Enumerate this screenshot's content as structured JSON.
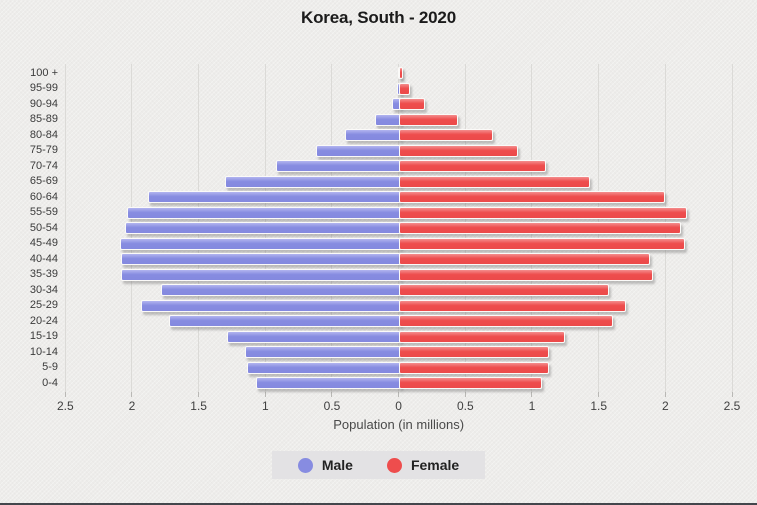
{
  "page": {
    "background_color": "#edecea",
    "bottom_border_color": "#43464c"
  },
  "chart_data": {
    "type": "bar",
    "variant": "population-pyramid",
    "title": "Korea, South - 2020",
    "xlabel": "Population (in millions)",
    "grid": true,
    "x_tick_labels": [
      "2.5",
      "2",
      "1.5",
      "1",
      "0.5",
      "0",
      "0.5",
      "1",
      "1.5",
      "2",
      "2.5"
    ],
    "x_axis_abs_range": [
      0,
      2.5
    ],
    "age_groups": [
      "100 +",
      "95-99",
      "90-94",
      "85-89",
      "80-84",
      "75-79",
      "70-74",
      "65-69",
      "60-64",
      "55-59",
      "50-54",
      "45-49",
      "40-44",
      "35-39",
      "30-34",
      "25-29",
      "20-24",
      "15-19",
      "10-14",
      "5-9",
      "0-4"
    ],
    "series": [
      {
        "name": "Male",
        "side": "left",
        "color": "#878ce1",
        "values": [
          0.003,
          0.01,
          0.05,
          0.18,
          0.4,
          0.62,
          0.92,
          1.3,
          1.88,
          2.04,
          2.05,
          2.09,
          2.08,
          2.08,
          1.78,
          1.93,
          1.72,
          1.29,
          1.15,
          1.14,
          1.07
        ]
      },
      {
        "name": "Female",
        "side": "right",
        "color": "#ee4d4d",
        "values": [
          0.015,
          0.07,
          0.18,
          0.43,
          0.69,
          0.88,
          1.09,
          1.42,
          1.98,
          2.15,
          2.1,
          2.13,
          1.87,
          1.89,
          1.56,
          1.69,
          1.59,
          1.23,
          1.11,
          1.11,
          1.06
        ]
      }
    ],
    "legend": {
      "position": "bottom",
      "items": [
        {
          "label": "Male",
          "color": "#878ce1"
        },
        {
          "label": "Female",
          "color": "#ee4d4d"
        }
      ]
    }
  }
}
